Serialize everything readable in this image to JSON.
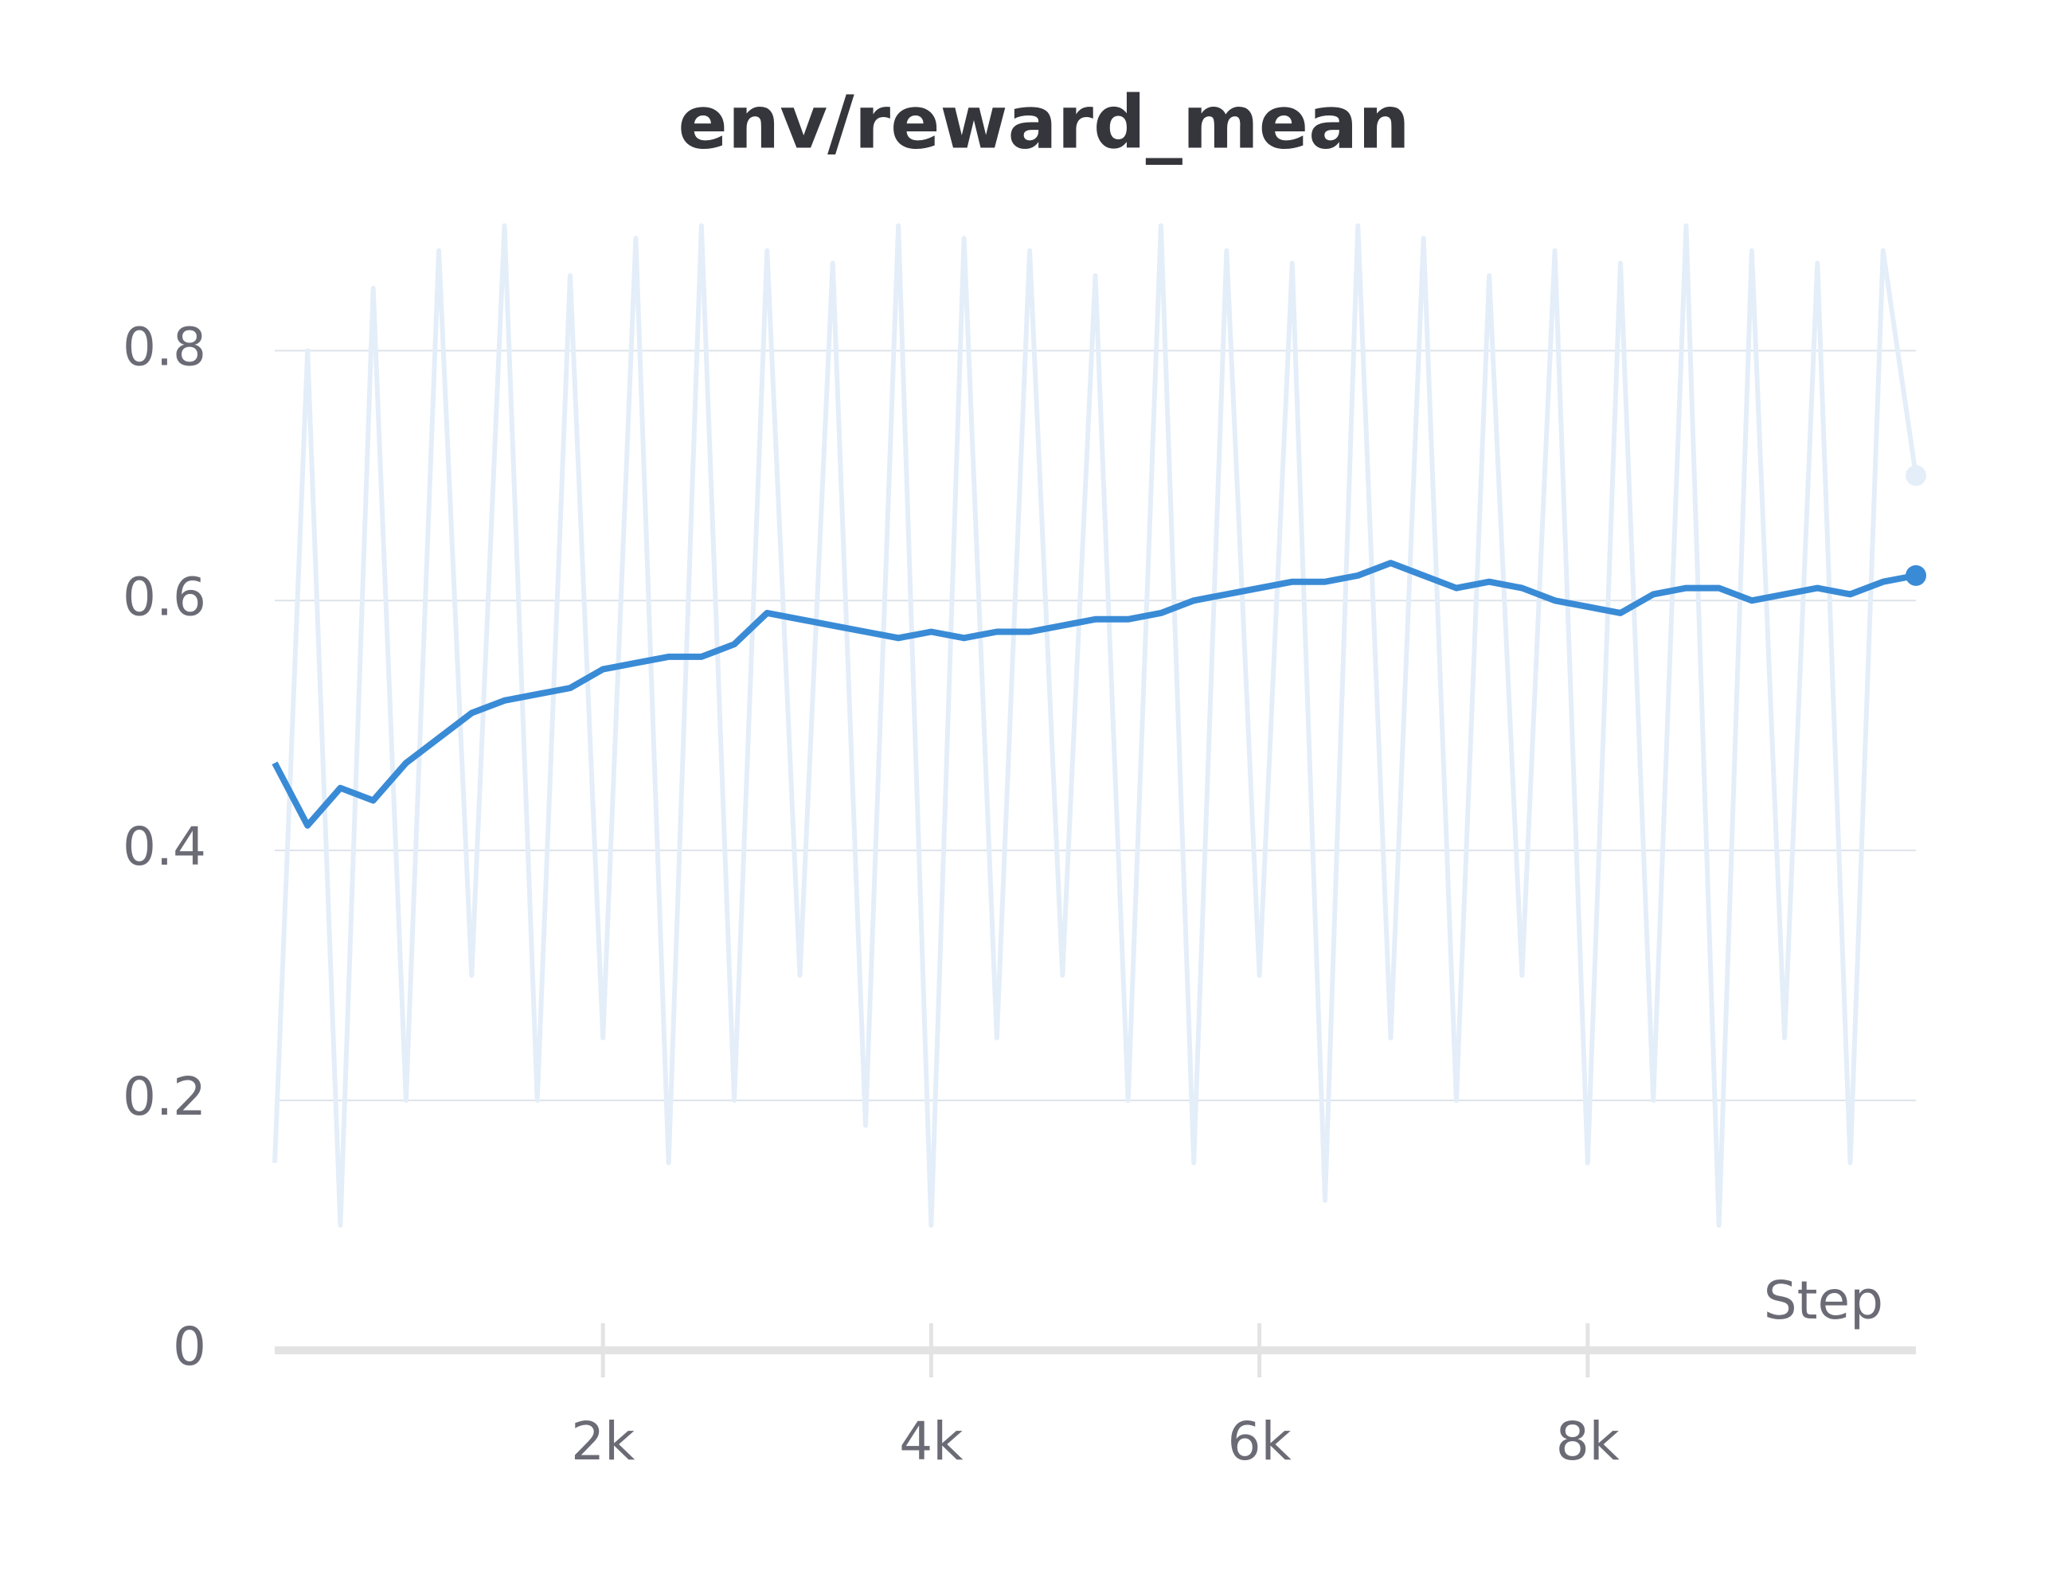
{
  "chart_data": {
    "type": "line",
    "title": "env/reward_mean",
    "x_label": "Step",
    "x": [
      0,
      200,
      400,
      600,
      800,
      1000,
      1200,
      1400,
      1600,
      1800,
      2000,
      2200,
      2400,
      2600,
      2800,
      3000,
      3200,
      3400,
      3600,
      3800,
      4000,
      4200,
      4400,
      4600,
      4800,
      5000,
      5200,
      5400,
      5600,
      5800,
      6000,
      6200,
      6400,
      6600,
      6800,
      7000,
      7200,
      7400,
      7600,
      7800,
      8000,
      8200,
      8400,
      8600,
      8800,
      9000,
      9200,
      9400,
      9600,
      9800,
      10000
    ],
    "series": [
      {
        "color": "#e4eef9",
        "values": [
          0.15,
          0.8,
          0.1,
          0.85,
          0.2,
          0.88,
          0.3,
          0.9,
          0.2,
          0.86,
          0.25,
          0.89,
          0.15,
          0.9,
          0.2,
          0.88,
          0.3,
          0.87,
          0.18,
          0.9,
          0.1,
          0.89,
          0.25,
          0.88,
          0.3,
          0.86,
          0.2,
          0.9,
          0.15,
          0.88,
          0.3,
          0.87,
          0.12,
          0.9,
          0.25,
          0.89,
          0.2,
          0.86,
          0.3,
          0.88,
          0.15,
          0.87,
          0.2,
          0.9,
          0.1,
          0.88,
          0.25,
          0.87,
          0.15,
          0.88,
          0.7
        ]
      },
      {
        "color": "#3a8bd6",
        "values": [
          0.47,
          0.42,
          0.45,
          0.44,
          0.47,
          0.49,
          0.51,
          0.52,
          0.525,
          0.53,
          0.545,
          0.55,
          0.555,
          0.555,
          0.565,
          0.59,
          0.585,
          0.58,
          0.575,
          0.57,
          0.575,
          0.57,
          0.575,
          0.575,
          0.58,
          0.585,
          0.585,
          0.59,
          0.6,
          0.605,
          0.61,
          0.615,
          0.615,
          0.62,
          0.63,
          0.62,
          0.61,
          0.615,
          0.61,
          0.6,
          0.595,
          0.59,
          0.605,
          0.61,
          0.61,
          0.6,
          0.605,
          0.61,
          0.605,
          0.615,
          0.62
        ]
      }
    ],
    "xlim": [
      0,
      10000
    ],
    "ylim": [
      0,
      0.92
    ],
    "xticks": [
      {
        "value": 2000,
        "label": "2k"
      },
      {
        "value": 4000,
        "label": "4k"
      },
      {
        "value": 6000,
        "label": "6k"
      },
      {
        "value": 8000,
        "label": "8k"
      }
    ],
    "yticks": [
      0,
      0.2,
      0.4,
      0.6,
      0.8
    ],
    "grid": true
  }
}
